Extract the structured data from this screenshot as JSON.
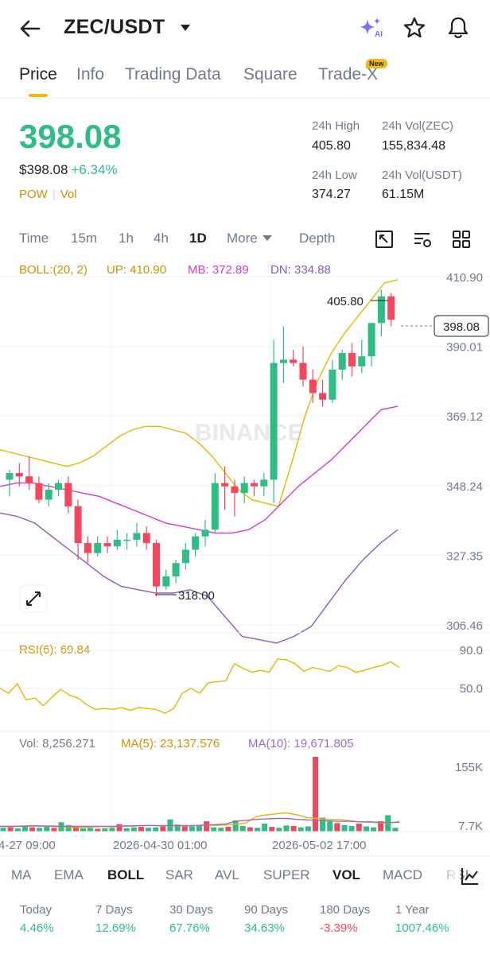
{
  "header": {
    "pair": "ZEC/USDT",
    "ai_badge": "AI"
  },
  "tabs": [
    {
      "label": "Price",
      "active": true
    },
    {
      "label": "Info"
    },
    {
      "label": "Trading Data"
    },
    {
      "label": "Square"
    },
    {
      "label": "Trade-X",
      "badge": "New"
    }
  ],
  "ticker": {
    "last_price": "398.08",
    "fiat_price": "$398.08",
    "change_pct": "+6.34%",
    "tags": [
      "POW",
      "Vol"
    ],
    "high_24h_label": "24h High",
    "high_24h": "405.80",
    "vol_base_label": "24h Vol(ZEC)",
    "vol_base": "155,834.48",
    "low_24h_label": "24h Low",
    "low_24h": "374.27",
    "vol_quote_label": "24h Vol(USDT)",
    "vol_quote": "61.15M"
  },
  "intervals": {
    "items": [
      "Time",
      "15m",
      "1h",
      "4h",
      "1D",
      "More",
      "Depth"
    ],
    "active": "1D"
  },
  "colors": {
    "up": "#2ebd85",
    "down": "#f6465d",
    "boll_up": "#e6b800",
    "boll_mb": "#d13ccf",
    "boll_dn": "#8a5cb8",
    "rsi": "#e6b800",
    "ma5": "#e6b800",
    "ma10": "#9b6bc7",
    "accent": "#f0b90b"
  },
  "chart_data": {
    "type": "candlestick",
    "watermark": "BINANCE",
    "boll": {
      "label": "BOLL:(20, 2)",
      "up": "UP: 410.90",
      "mb": "MB: 372.89",
      "dn": "DN: 334.88"
    },
    "y_ticks": [
      "410.90",
      "390.01",
      "369.12",
      "348.24",
      "327.35",
      "306.46"
    ],
    "y_range": [
      306.46,
      410.9
    ],
    "last_price_tag": "398.08",
    "max_marker": "405.80",
    "min_marker": "318.00",
    "candles": [
      [
        350,
        353,
        345,
        352
      ],
      [
        352,
        355,
        348,
        351
      ],
      [
        351,
        357,
        347,
        349
      ],
      [
        349,
        351,
        343,
        344
      ],
      [
        344,
        349,
        342,
        347
      ],
      [
        347,
        350,
        345,
        349
      ],
      [
        349,
        351,
        340,
        342
      ],
      [
        342,
        344,
        326,
        331
      ],
      [
        331,
        333,
        325,
        328
      ],
      [
        328,
        333,
        327,
        331
      ],
      [
        331,
        333,
        328,
        330
      ],
      [
        330,
        335,
        329,
        332
      ],
      [
        332,
        334,
        329,
        332
      ],
      [
        332,
        337,
        330,
        334
      ],
      [
        334,
        336,
        329,
        331
      ],
      [
        331,
        332,
        315,
        318
      ],
      [
        318,
        323,
        317,
        321
      ],
      [
        321,
        326,
        319,
        325
      ],
      [
        325,
        331,
        323,
        329
      ],
      [
        329,
        334,
        327,
        333
      ],
      [
        333,
        338,
        330,
        335
      ],
      [
        335,
        352,
        334,
        349
      ],
      [
        349,
        354,
        341,
        348
      ],
      [
        348,
        350,
        339,
        346
      ],
      [
        346,
        351,
        343,
        349
      ],
      [
        349,
        350,
        345,
        348
      ],
      [
        348,
        352,
        345,
        350
      ],
      [
        350,
        392,
        343,
        385
      ],
      [
        385,
        396,
        379,
        386
      ],
      [
        386,
        389,
        384,
        385
      ],
      [
        385,
        390,
        378,
        380
      ],
      [
        380,
        383,
        373,
        376
      ],
      [
        376,
        380,
        372,
        374
      ],
      [
        374,
        386,
        373,
        383
      ],
      [
        383,
        389,
        380,
        388
      ],
      [
        388,
        391,
        381,
        384
      ],
      [
        384,
        392,
        382,
        387
      ],
      [
        387,
        397,
        384,
        397
      ],
      [
        397,
        407,
        393,
        405
      ],
      [
        405,
        406,
        396,
        398
      ]
    ],
    "boll_up": [
      359,
      358,
      357,
      356,
      355,
      354,
      355,
      357,
      360,
      363,
      365,
      366,
      366,
      365,
      364,
      361,
      357,
      352,
      347,
      344,
      343,
      342,
      355,
      369,
      380,
      388,
      394,
      399,
      404,
      409,
      410
    ],
    "boll_mb": [
      348,
      349,
      349,
      348,
      347,
      346,
      345,
      343,
      341,
      339,
      337,
      336,
      335,
      334,
      334,
      335,
      338,
      343,
      348,
      352,
      356,
      361,
      366,
      371,
      372
    ],
    "boll_dn": [
      340,
      339,
      337,
      333,
      329,
      325,
      321,
      318,
      317,
      316,
      316,
      317,
      315,
      309,
      303,
      302,
      301,
      303,
      306,
      313,
      320,
      326,
      331,
      335
    ],
    "rsi": {
      "label": "RSI(6): 69.84",
      "ticks": [
        "90.0",
        "50.0"
      ],
      "values": [
        50,
        45,
        55,
        38,
        40,
        32,
        41,
        49,
        43,
        40,
        33,
        28,
        29,
        28,
        30,
        27,
        30,
        29,
        28,
        24,
        29,
        45,
        50,
        45,
        56,
        57,
        58,
        76,
        71,
        67,
        69,
        67,
        81,
        80,
        76,
        68,
        72,
        70,
        68,
        74,
        72,
        67,
        69,
        72,
        74,
        78,
        72
      ]
    },
    "volume": {
      "label": "Vol: 8,256.271",
      "ma5_label": "MA(5): 23,137.576",
      "ma10_label": "MA(10): 19,671.805",
      "ticks": [
        "155K",
        "7.7K"
      ],
      "values": [
        8,
        9,
        7,
        10,
        9,
        8,
        10,
        8,
        20,
        14,
        9,
        7,
        8,
        6,
        7,
        8,
        16,
        7,
        9,
        10,
        8,
        9,
        13,
        26,
        15,
        13,
        11,
        14,
        22,
        9,
        8,
        10,
        24,
        12,
        9,
        8,
        17,
        10,
        8,
        13,
        12,
        9,
        11,
        160,
        30,
        22,
        18,
        14,
        12,
        17,
        11,
        9,
        22,
        35,
        8
      ],
      "ma5": [
        11,
        11,
        12,
        13,
        12,
        11,
        10,
        9,
        9,
        10,
        11,
        10,
        12,
        13,
        13,
        13,
        12,
        13,
        12,
        13,
        14,
        13,
        14,
        16,
        18,
        32,
        36,
        38,
        40,
        36,
        30,
        28,
        26,
        26,
        24,
        21,
        20,
        19,
        18,
        22
      ],
      "ma10": [
        11,
        11,
        11,
        12,
        12,
        12,
        11,
        11,
        11,
        11,
        11,
        11,
        12,
        12,
        13,
        13,
        13,
        13,
        13,
        13,
        14,
        15,
        16,
        22,
        24,
        26,
        27,
        28,
        28,
        26,
        25,
        24,
        23,
        22,
        22,
        21,
        21,
        20,
        19,
        20
      ]
    },
    "x_ticks": [
      "4-27 09:00",
      "2026-04-30 01:00",
      "2026-05-02 17:00"
    ]
  },
  "indicator_tabs": {
    "items": [
      "MA",
      "EMA",
      "BOLL",
      "SAR",
      "AVL",
      "SUPER",
      "VOL",
      "MACD",
      "RSI"
    ],
    "active": [
      "BOLL",
      "VOL"
    ]
  },
  "performance": [
    {
      "label": "Today",
      "value": "4.46%",
      "dir": "pos"
    },
    {
      "label": "7 Days",
      "value": "12.69%",
      "dir": "pos"
    },
    {
      "label": "30 Days",
      "value": "67.76%",
      "dir": "pos"
    },
    {
      "label": "90 Days",
      "value": "34.63%",
      "dir": "pos"
    },
    {
      "label": "180 Days",
      "value": "-3.39%",
      "dir": "neg"
    },
    {
      "label": "1 Year",
      "value": "1007.46%",
      "dir": "pos"
    }
  ]
}
